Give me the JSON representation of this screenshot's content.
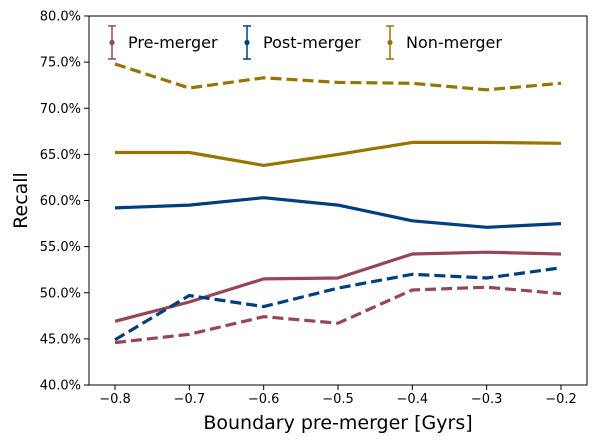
{
  "chart_data": {
    "type": "line",
    "title": "",
    "xlabel": "Boundary pre-merger [Gyrs]",
    "ylabel": "Recall",
    "xlim": [
      -0.835,
      -0.165
    ],
    "ylim": [
      0.4,
      0.8
    ],
    "grid": false,
    "legend_placement": "top-left",
    "x": [
      -0.8,
      -0.7,
      -0.6,
      -0.5,
      -0.4,
      -0.3,
      -0.2
    ],
    "x_ticks": [
      -0.8,
      -0.7,
      -0.6,
      -0.5,
      -0.4,
      -0.3,
      -0.2
    ],
    "x_tick_labels": [
      "−0.8",
      "−0.7",
      "−0.6",
      "−0.5",
      "−0.4",
      "−0.3",
      "−0.2"
    ],
    "y_ticks": [
      0.4,
      0.45,
      0.5,
      0.55,
      0.6,
      0.65,
      0.7,
      0.75,
      0.8
    ],
    "y_tick_labels": [
      "40.0%",
      "45.0%",
      "50.0%",
      "55.0%",
      "60.0%",
      "65.0%",
      "70.0%",
      "75.0%",
      "80.0%"
    ],
    "legend": [
      {
        "label": "Pre-merger",
        "color": "#964656"
      },
      {
        "label": "Post-merger",
        "color": "#003f7f"
      },
      {
        "label": "Non-merger",
        "color": "#9a7400"
      }
    ],
    "series": [
      {
        "class": "Pre-merger",
        "style": "solid",
        "color": "#964656",
        "values": [
          0.469,
          0.49,
          0.515,
          0.516,
          0.542,
          0.544,
          0.542
        ]
      },
      {
        "class": "Pre-merger",
        "style": "dashed",
        "color": "#964656",
        "values": [
          0.446,
          0.455,
          0.474,
          0.467,
          0.503,
          0.506,
          0.499
        ]
      },
      {
        "class": "Post-merger",
        "style": "solid",
        "color": "#003f7f",
        "values": [
          0.592,
          0.595,
          0.603,
          0.595,
          0.578,
          0.571,
          0.575
        ]
      },
      {
        "class": "Post-merger",
        "style": "dashed",
        "color": "#003f7f",
        "values": [
          0.449,
          0.497,
          0.485,
          0.505,
          0.52,
          0.516,
          0.527
        ]
      },
      {
        "class": "Non-merger",
        "style": "solid",
        "color": "#9a7400",
        "values": [
          0.652,
          0.652,
          0.638,
          0.65,
          0.663,
          0.663,
          0.662
        ]
      },
      {
        "class": "Non-merger",
        "style": "dashed",
        "color": "#9a7400",
        "values": [
          0.748,
          0.722,
          0.733,
          0.728,
          0.727,
          0.72,
          0.727
        ]
      }
    ]
  }
}
